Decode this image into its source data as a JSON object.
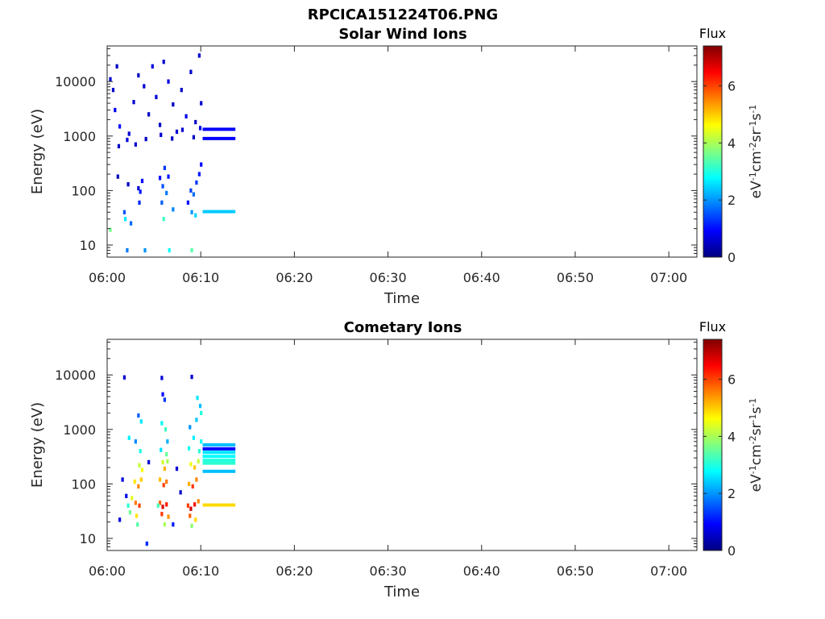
{
  "figure_title": "RPCICA151224T06.PNG",
  "chart_data": [
    {
      "type": "heatmap",
      "title": "Solar Wind Ions",
      "xlabel": "Time",
      "ylabel": "Energy (eV)",
      "x_ticks": [
        "06:00",
        "06:10",
        "06:20",
        "06:30",
        "06:40",
        "06:50",
        "07:00"
      ],
      "xlim_minutes": [
        0,
        63
      ],
      "y_scale": "log",
      "y_ticks": [
        10,
        100,
        1000,
        10000
      ],
      "y_tick_labels": [
        "10",
        "100",
        "1000",
        "10000"
      ],
      "ylim": [
        6,
        45000
      ],
      "colorbar": {
        "title": "Flux",
        "label": "eV-1cm-2sr-1s-1",
        "range": [
          0,
          7.4
        ],
        "ticks": [
          "0",
          "2",
          "4",
          "6"
        ]
      },
      "cells": [
        [
          0.3,
          11000,
          0.6
        ],
        [
          0.6,
          7000,
          0.6
        ],
        [
          1.0,
          19000,
          0.5
        ],
        [
          0.8,
          3000,
          0.8
        ],
        [
          1.3,
          1500,
          1.0
        ],
        [
          2.1,
          850,
          0.7
        ],
        [
          2.8,
          4200,
          0.6
        ],
        [
          3.3,
          13000,
          0.5
        ],
        [
          3.9,
          8200,
          0.6
        ],
        [
          4.4,
          2500,
          0.5
        ],
        [
          4.8,
          19000,
          0.7
        ],
        [
          5.2,
          5200,
          0.6
        ],
        [
          5.6,
          1600,
          0.5
        ],
        [
          6.0,
          23000,
          0.6
        ],
        [
          6.5,
          10000,
          0.7
        ],
        [
          7.0,
          3800,
          0.5
        ],
        [
          7.4,
          1200,
          0.6
        ],
        [
          7.9,
          7000,
          0.5
        ],
        [
          8.4,
          2300,
          0.8
        ],
        [
          8.9,
          15000,
          0.6
        ],
        [
          9.4,
          1800,
          0.5
        ],
        [
          9.8,
          30000,
          0.6
        ],
        [
          10.0,
          4000,
          0.6
        ],
        [
          1.2,
          650,
          0.5
        ],
        [
          2.3,
          1100,
          0.6
        ],
        [
          3.0,
          700,
          0.6
        ],
        [
          4.1,
          880,
          0.5
        ],
        [
          5.7,
          1050,
          0.6
        ],
        [
          6.9,
          900,
          0.5
        ],
        [
          8.0,
          1300,
          0.6
        ],
        [
          9.2,
          950,
          0.5
        ],
        [
          9.9,
          1400,
          0.7
        ],
        [
          1.1,
          180,
          0.4
        ],
        [
          2.2,
          130,
          0.5
        ],
        [
          3.3,
          110,
          0.6
        ],
        [
          3.5,
          95,
          1.1
        ],
        [
          3.7,
          150,
          0.9
        ],
        [
          3.4,
          60,
          1.2
        ],
        [
          5.6,
          170,
          1.0
        ],
        [
          5.9,
          120,
          1.5
        ],
        [
          6.1,
          260,
          1.3
        ],
        [
          6.3,
          90,
          1.8
        ],
        [
          5.8,
          60,
          1.6
        ],
        [
          6.5,
          180,
          1.1
        ],
        [
          8.6,
          60,
          1.0
        ],
        [
          8.9,
          100,
          1.4
        ],
        [
          9.2,
          85,
          1.7
        ],
        [
          9.5,
          140,
          1.3
        ],
        [
          9.8,
          200,
          1.1
        ],
        [
          10.0,
          300,
          0.9
        ],
        [
          9.0,
          40,
          2.0
        ],
        [
          9.4,
          35,
          2.5
        ],
        [
          6.0,
          30,
          3.2
        ],
        [
          2.5,
          25,
          1.7
        ],
        [
          1.8,
          40,
          1.5
        ],
        [
          0.3,
          19,
          3.6
        ],
        [
          4.0,
          8,
          2.0
        ],
        [
          6.6,
          8,
          2.8
        ],
        [
          9.0,
          8,
          3.4
        ],
        [
          2.1,
          8,
          1.8
        ],
        [
          1.9,
          30,
          2.6
        ],
        [
          7.0,
          45,
          1.9
        ]
      ],
      "lines": [
        {
          "x0": 10.2,
          "x1": 13.7,
          "y": 1330,
          "value": 0.9
        },
        {
          "x0": 10.2,
          "x1": 13.7,
          "y": 900,
          "value": 0.9
        },
        {
          "x0": 10.2,
          "x1": 13.7,
          "y": 41,
          "value": 2.4
        }
      ]
    },
    {
      "type": "heatmap",
      "title": "Cometary Ions",
      "xlabel": "Time",
      "ylabel": "Energy (eV)",
      "x_ticks": [
        "06:00",
        "06:10",
        "06:20",
        "06:30",
        "06:40",
        "06:50",
        "07:00"
      ],
      "xlim_minutes": [
        0,
        63
      ],
      "y_scale": "log",
      "y_ticks": [
        10,
        100,
        1000,
        10000
      ],
      "y_tick_labels": [
        "10",
        "100",
        "1000",
        "10000"
      ],
      "ylim": [
        6,
        45000
      ],
      "colorbar": {
        "title": "Flux",
        "label": "eV-1cm-2sr-1s-1",
        "range": [
          0,
          7.4
        ],
        "ticks": [
          "0",
          "2",
          "4",
          "6"
        ]
      },
      "cells": [
        [
          1.8,
          9000,
          0.6
        ],
        [
          5.8,
          8800,
          0.6
        ],
        [
          9.0,
          9200,
          0.6
        ],
        [
          5.9,
          4400,
          1.0
        ],
        [
          6.1,
          3500,
          1.3
        ],
        [
          9.6,
          3800,
          2.6
        ],
        [
          9.9,
          2700,
          2.3
        ],
        [
          3.3,
          1800,
          1.6
        ],
        [
          3.6,
          1400,
          2.6
        ],
        [
          5.8,
          1300,
          2.8
        ],
        [
          6.2,
          1000,
          3.2
        ],
        [
          8.8,
          1100,
          2.0
        ],
        [
          9.5,
          1500,
          2.4
        ],
        [
          2.3,
          700,
          2.7
        ],
        [
          3.0,
          600,
          1.9
        ],
        [
          6.4,
          600,
          2.2
        ],
        [
          9.2,
          700,
          2.7
        ],
        [
          3.5,
          400,
          3.0
        ],
        [
          5.7,
          420,
          2.6
        ],
        [
          6.3,
          350,
          3.5
        ],
        [
          8.7,
          450,
          2.9
        ],
        [
          9.8,
          400,
          3.1
        ],
        [
          3.4,
          220,
          4.2
        ],
        [
          3.7,
          180,
          4.6
        ],
        [
          5.9,
          250,
          4.3
        ],
        [
          6.1,
          190,
          5.2
        ],
        [
          6.4,
          260,
          4.0
        ],
        [
          8.9,
          230,
          4.5
        ],
        [
          9.3,
          200,
          5.0
        ],
        [
          9.7,
          260,
          4.2
        ],
        [
          2.9,
          110,
          4.8
        ],
        [
          3.3,
          90,
          5.5
        ],
        [
          3.6,
          120,
          5.0
        ],
        [
          5.6,
          120,
          5.1
        ],
        [
          6.0,
          95,
          6.0
        ],
        [
          6.3,
          110,
          5.6
        ],
        [
          8.7,
          100,
          5.2
        ],
        [
          9.1,
          90,
          6.1
        ],
        [
          9.5,
          120,
          5.5
        ],
        [
          2.6,
          55,
          4.4
        ],
        [
          3.0,
          45,
          5.6
        ],
        [
          3.4,
          40,
          6.0
        ],
        [
          5.6,
          45,
          5.8
        ],
        [
          5.9,
          38,
          6.7
        ],
        [
          6.3,
          42,
          6.3
        ],
        [
          8.6,
          40,
          6.0
        ],
        [
          8.9,
          35,
          6.8
        ],
        [
          9.3,
          42,
          6.4
        ],
        [
          9.7,
          48,
          5.5
        ],
        [
          2.4,
          30,
          3.6
        ],
        [
          3.1,
          26,
          4.8
        ],
        [
          5.8,
          28,
          6.1
        ],
        [
          6.5,
          25,
          5.4
        ],
        [
          8.8,
          26,
          5.8
        ],
        [
          9.4,
          22,
          4.9
        ],
        [
          3.2,
          18,
          3.4
        ],
        [
          6.1,
          18,
          4.0
        ],
        [
          9.0,
          17,
          3.8
        ],
        [
          1.6,
          120,
          0.7
        ],
        [
          2.0,
          60,
          0.8
        ],
        [
          4.4,
          250,
          0.6
        ],
        [
          7.4,
          190,
          0.6
        ],
        [
          7.8,
          70,
          0.5
        ],
        [
          1.3,
          22,
          0.7
        ],
        [
          4.2,
          8,
          1.2
        ],
        [
          7.0,
          18,
          1.1
        ],
        [
          10.0,
          2000,
          3.0
        ],
        [
          10.0,
          600,
          2.8
        ],
        [
          5.4,
          40,
          3.3
        ],
        [
          2.2,
          40,
          3.1
        ]
      ],
      "lines": [
        {
          "x0": 10.2,
          "x1": 13.7,
          "y": 520,
          "value": 2.3
        },
        {
          "x0": 10.2,
          "x1": 13.7,
          "y": 440,
          "value": 0.9
        },
        {
          "x0": 10.2,
          "x1": 13.7,
          "y": 380,
          "value": 2.6
        },
        {
          "x0": 10.2,
          "x1": 13.7,
          "y": 320,
          "value": 2.8
        },
        {
          "x0": 10.2,
          "x1": 13.7,
          "y": 270,
          "value": 3.0
        },
        {
          "x0": 10.2,
          "x1": 13.7,
          "y": 240,
          "value": 3.1
        },
        {
          "x0": 10.2,
          "x1": 13.7,
          "y": 170,
          "value": 2.3
        },
        {
          "x0": 10.2,
          "x1": 13.7,
          "y": 41,
          "value": 4.9
        }
      ]
    }
  ]
}
